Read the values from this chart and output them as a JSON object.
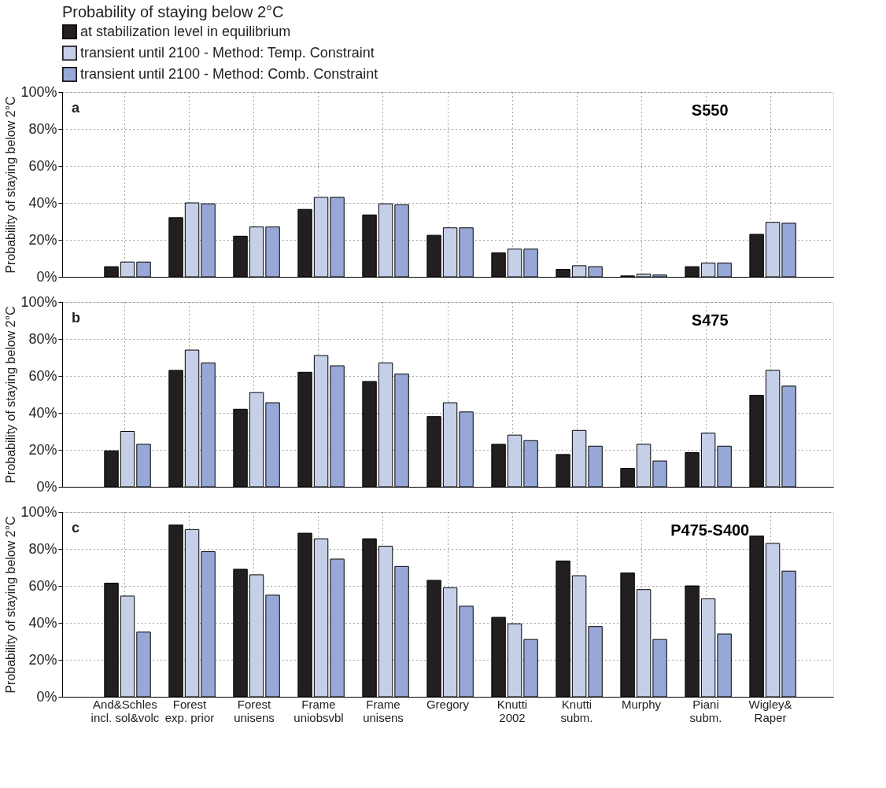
{
  "chart_data": [
    {
      "type": "bar",
      "legend_title": "Probability of staying below 2°C",
      "legend": "top left",
      "ylabel": "Probability of staying below 2°C",
      "series": [
        {
          "name": "at stabilization level in equilibrium",
          "color": "#231f20",
          "values": [
            5.5,
            32,
            22,
            36.5,
            33.5,
            22.5,
            13,
            4,
            0.5,
            5.5,
            23
          ]
        },
        {
          "name": "transient until 2100 - Method: Temp. Constraint",
          "color": "#c5cfe8",
          "values": [
            8,
            40,
            27,
            43,
            39.5,
            26.5,
            15,
            6,
            1.5,
            7.5,
            29.5
          ]
        },
        {
          "name": "transient until 2100 - Method: Comb. Constraint",
          "color": "#97a8d6",
          "values": [
            8,
            39.5,
            27,
            43,
            39,
            26.5,
            15,
            5.5,
            1,
            7.5,
            29
          ]
        }
      ],
      "ylim": [
        0,
        100
      ],
      "yticks": [
        {
          "value": 0,
          "label": "0%"
        },
        {
          "value": 20,
          "label": "20%"
        },
        {
          "value": 40,
          "label": "40%"
        },
        {
          "value": 60,
          "label": "60%"
        },
        {
          "value": 80,
          "label": "80%"
        },
        {
          "value": 100,
          "label": "100%"
        }
      ],
      "grid": true,
      "tick_labels": "y",
      "annotations": [
        "a",
        "S550"
      ]
    },
    {
      "type": "bar",
      "legend": false,
      "ylabel": "Probability of staying below 2°C",
      "series": [
        {
          "color": "#231f20",
          "values": [
            19.5,
            63,
            42,
            62,
            57,
            38,
            23,
            17.5,
            10,
            18.5,
            49.5
          ]
        },
        {
          "color": "#c5cfe8",
          "values": [
            30,
            74,
            51,
            71,
            67,
            45.5,
            28,
            30.5,
            23,
            29,
            63
          ]
        },
        {
          "color": "#97a8d6",
          "values": [
            23,
            67,
            45.5,
            65.5,
            61,
            40.5,
            25,
            22,
            14,
            22,
            54.5
          ]
        }
      ],
      "ylim": [
        0,
        100
      ],
      "yticks": [
        {
          "value": 0,
          "label": "0%"
        },
        {
          "value": 20,
          "label": "20%"
        },
        {
          "value": 40,
          "label": "40%"
        },
        {
          "value": 60,
          "label": "60%"
        },
        {
          "value": 80,
          "label": "80%"
        },
        {
          "value": 100,
          "label": "100%"
        }
      ],
      "grid": true,
      "tick_labels": "y",
      "annotations": [
        "b",
        "S475"
      ]
    },
    {
      "type": "bar",
      "legend": false,
      "ylabel": "Probability of staying below 2°C",
      "categories": [
        "And&Schles\nincl. sol&volc",
        "Forest\nexp. prior",
        "Forest\nunisens",
        "Frame\nuniobsvbl",
        "Frame\nunisens",
        "Gregory",
        "Knutti\n2002",
        "Knutti\nsubm.",
        "Murphy",
        "Piani\nsubm.",
        "Wigley&\nRaper"
      ],
      "series": [
        {
          "color": "#231f20",
          "values": [
            61.5,
            93,
            69,
            88.5,
            85.5,
            63,
            43,
            73.5,
            67,
            60,
            87
          ]
        },
        {
          "color": "#c5cfe8",
          "values": [
            54.5,
            90.5,
            66,
            85.5,
            81.5,
            59,
            39.5,
            65.5,
            58,
            53,
            83
          ]
        },
        {
          "color": "#97a8d6",
          "values": [
            35,
            78.5,
            55,
            74.5,
            70.5,
            49,
            31,
            38,
            31,
            34,
            68
          ]
        }
      ],
      "ylim": [
        0,
        100
      ],
      "yticks": [
        {
          "value": 0,
          "label": "0%"
        },
        {
          "value": 20,
          "label": "20%"
        },
        {
          "value": 40,
          "label": "40%"
        },
        {
          "value": 60,
          "label": "60%"
        },
        {
          "value": 80,
          "label": "80%"
        },
        {
          "value": 100,
          "label": "100%"
        }
      ],
      "grid": true,
      "annotations": [
        "c",
        "P475-S400"
      ]
    }
  ]
}
